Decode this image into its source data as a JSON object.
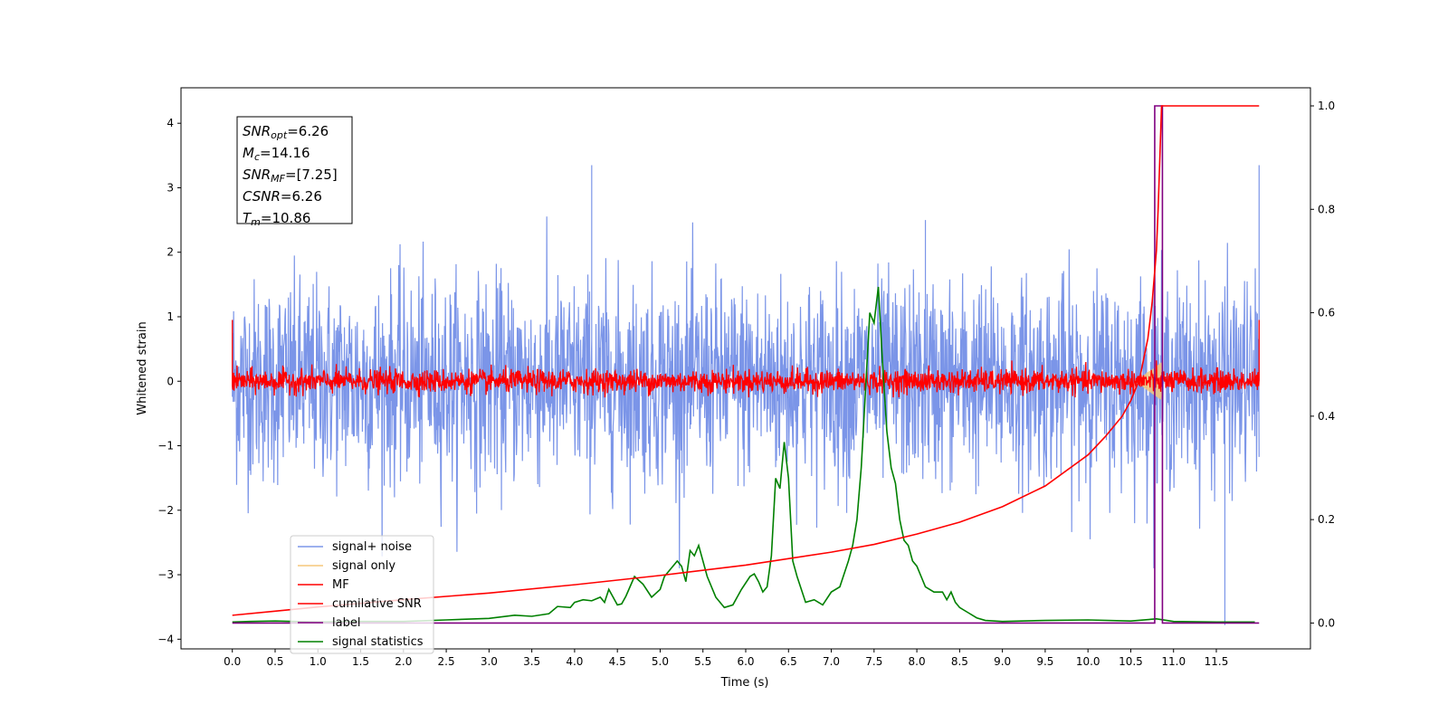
{
  "chart_data": {
    "type": "line",
    "xlabel": "Time (s)",
    "ylabel": "Whitened strain",
    "xlim": [
      -0.6,
      12.6
    ],
    "ylim": [
      -4.15,
      4.55
    ],
    "ylim_right": [
      -0.05,
      1.035
    ],
    "xticks": [
      0.0,
      0.5,
      1.0,
      1.5,
      2.0,
      2.5,
      3.0,
      3.5,
      4.0,
      4.5,
      5.0,
      5.5,
      6.0,
      6.5,
      7.0,
      7.5,
      8.0,
      8.5,
      9.0,
      9.5,
      10.0,
      10.5,
      11.0,
      11.5
    ],
    "xtick_labels": [
      "0.0",
      "0.5",
      "1.0",
      "1.5",
      "2.0",
      "2.5",
      "3.0",
      "3.5",
      "4.0",
      "4.5",
      "5.0",
      "5.5",
      "6.0",
      "6.5",
      "7.0",
      "7.5",
      "8.0",
      "8.5",
      "9.0",
      "9.5",
      "10.0",
      "10.5",
      "11.0",
      "11.5"
    ],
    "yticks_left": [
      -4,
      -3,
      -2,
      -1,
      0,
      1,
      2,
      3,
      4
    ],
    "ytick_labels_left": [
      "−4",
      "−3",
      "−2",
      "−1",
      "0",
      "1",
      "2",
      "3",
      "4"
    ],
    "yticks_right": [
      0.0,
      0.2,
      0.4,
      0.6,
      0.8,
      1.0
    ],
    "ytick_labels_right": [
      "0.0",
      "0.2",
      "0.4",
      "0.6",
      "0.8",
      "1.0"
    ],
    "grid": false,
    "legend_position": "lower-left",
    "annotation": {
      "lines": [
        {
          "sym": "SNR",
          "sub": "opt",
          "value": "=6.26"
        },
        {
          "sym": "M",
          "sub": "c",
          "value": "=14.16"
        },
        {
          "sym": "SNR",
          "sub": "MF",
          "value": "=[7.25]"
        },
        {
          "sym": "CSNR",
          "sub": "",
          "value": "=6.26"
        },
        {
          "sym": "T",
          "sub": "m",
          "value": "=10.86"
        }
      ]
    },
    "series": [
      {
        "name": "signal+ noise",
        "color": "#7b95e8",
        "axis": "left",
        "description_style": "dense noise",
        "x_range": [
          0.0,
          12.0
        ],
        "typical_range": [
          -1.9,
          1.9
        ],
        "peak_examples": [
          [
            4.2,
            3.35
          ],
          [
            8.1,
            2.5
          ],
          [
            11.6,
            -3.78
          ],
          [
            12.0,
            3.35
          ]
        ]
      },
      {
        "name": "signal only",
        "color": "#f5c77a",
        "axis": "left",
        "chirp": {
          "start": 10.55,
          "end": 10.86,
          "peak_amplitude": 0.3
        }
      },
      {
        "name": "MF",
        "color": "#ff0000",
        "axis": "left",
        "description_style": "dense noise",
        "x_range": [
          0.0,
          12.0
        ],
        "typical_range": [
          -0.2,
          0.2
        ],
        "edge_values": [
          [
            0.0,
            0.95
          ],
          [
            12.0,
            0.95
          ]
        ]
      },
      {
        "name": "cumilative SNR",
        "color": "#ff0000",
        "axis": "right",
        "x": [
          0.0,
          0.5,
          1.0,
          2.0,
          3.0,
          4.0,
          5.0,
          6.0,
          7.0,
          7.5,
          8.0,
          8.5,
          9.0,
          9.5,
          10.0,
          10.2,
          10.4,
          10.5,
          10.6,
          10.7,
          10.75,
          10.8,
          10.82,
          10.84,
          10.86,
          11.0,
          11.5,
          12.0
        ],
        "y": [
          0.015,
          0.023,
          0.031,
          0.045,
          0.058,
          0.074,
          0.092,
          0.112,
          0.137,
          0.152,
          0.172,
          0.195,
          0.225,
          0.265,
          0.325,
          0.36,
          0.4,
          0.43,
          0.47,
          0.55,
          0.62,
          0.72,
          0.8,
          0.9,
          1.0,
          1.0,
          1.0,
          1.0
        ]
      },
      {
        "name": "label",
        "color": "#800080",
        "axis": "right",
        "x": [
          0.0,
          10.78,
          10.78,
          10.87,
          10.87,
          12.0
        ],
        "y": [
          0.0,
          0.0,
          1.0,
          1.0,
          0.0,
          0.0
        ]
      },
      {
        "name": "signal statistics",
        "color": "#008000",
        "axis": "right",
        "x": [
          0.0,
          0.2,
          0.5,
          1.0,
          1.5,
          2.0,
          2.5,
          3.0,
          3.3,
          3.5,
          3.7,
          3.8,
          3.95,
          4.0,
          4.1,
          4.2,
          4.3,
          4.35,
          4.4,
          4.5,
          4.55,
          4.6,
          4.7,
          4.8,
          4.9,
          5.0,
          5.05,
          5.1,
          5.2,
          5.25,
          5.3,
          5.35,
          5.4,
          5.45,
          5.55,
          5.65,
          5.75,
          5.85,
          5.95,
          6.05,
          6.1,
          6.15,
          6.2,
          6.25,
          6.3,
          6.35,
          6.4,
          6.45,
          6.5,
          6.55,
          6.6,
          6.7,
          6.8,
          6.9,
          7.0,
          7.1,
          7.2,
          7.25,
          7.3,
          7.35,
          7.4,
          7.45,
          7.5,
          7.55,
          7.6,
          7.65,
          7.7,
          7.75,
          7.8,
          7.85,
          7.9,
          7.95,
          8.0,
          8.05,
          8.1,
          8.2,
          8.3,
          8.35,
          8.4,
          8.45,
          8.5,
          8.6,
          8.7,
          8.8,
          9.0,
          9.5,
          10.0,
          10.5,
          10.8,
          11.0,
          11.5,
          11.95
        ],
        "y": [
          0.002,
          0.003,
          0.004,
          0.002,
          0.003,
          0.003,
          0.006,
          0.009,
          0.015,
          0.013,
          0.018,
          0.032,
          0.03,
          0.04,
          0.045,
          0.043,
          0.05,
          0.04,
          0.065,
          0.035,
          0.037,
          0.052,
          0.09,
          0.075,
          0.05,
          0.065,
          0.09,
          0.1,
          0.12,
          0.11,
          0.08,
          0.14,
          0.13,
          0.15,
          0.09,
          0.05,
          0.03,
          0.035,
          0.065,
          0.09,
          0.095,
          0.08,
          0.06,
          0.07,
          0.13,
          0.28,
          0.26,
          0.35,
          0.28,
          0.12,
          0.09,
          0.04,
          0.045,
          0.035,
          0.06,
          0.07,
          0.12,
          0.15,
          0.2,
          0.3,
          0.45,
          0.6,
          0.58,
          0.65,
          0.5,
          0.37,
          0.3,
          0.27,
          0.2,
          0.16,
          0.15,
          0.12,
          0.11,
          0.09,
          0.07,
          0.06,
          0.06,
          0.045,
          0.06,
          0.04,
          0.03,
          0.02,
          0.01,
          0.005,
          0.003,
          0.005,
          0.006,
          0.004,
          0.008,
          0.003,
          0.002,
          0.002
        ]
      }
    ]
  }
}
